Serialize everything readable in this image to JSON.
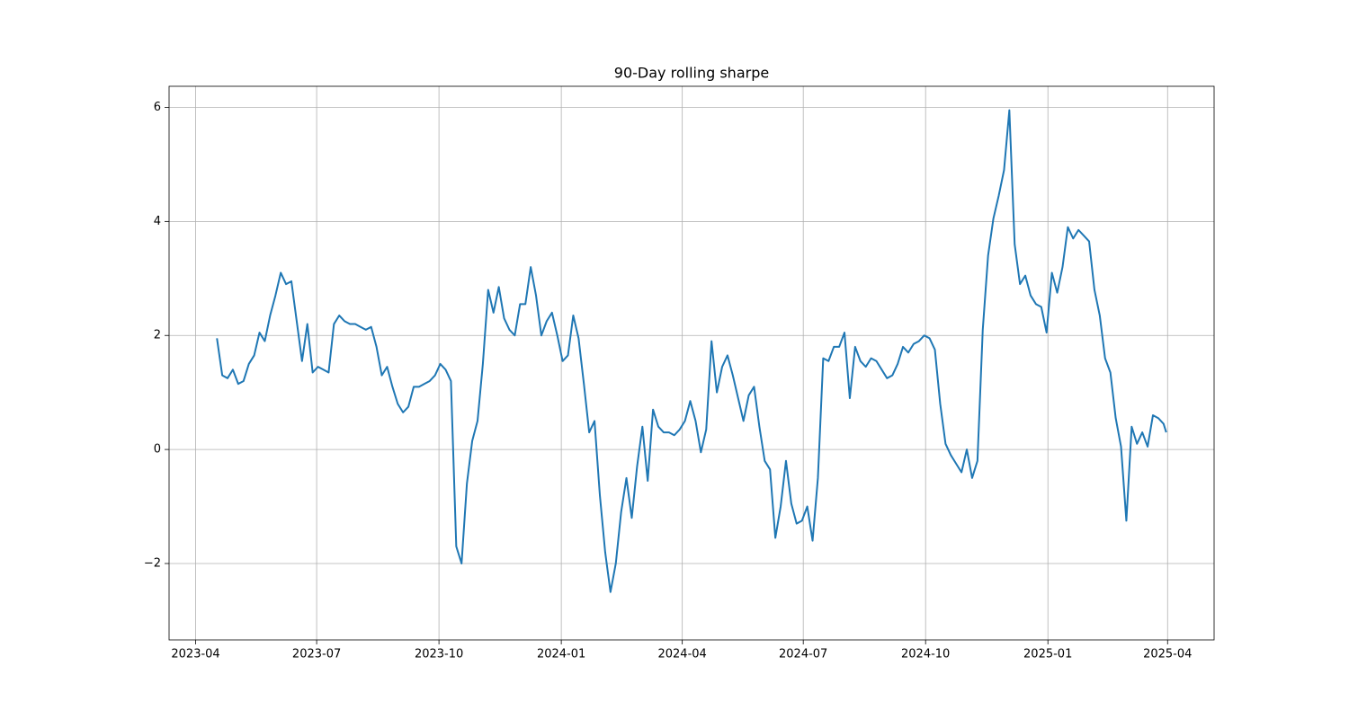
{
  "chart_data": {
    "type": "line",
    "title": "90-Day rolling sharpe",
    "color": "#1f77b4",
    "grid": true,
    "x": [
      "2023-04-17",
      "2023-04-21",
      "2023-04-25",
      "2023-04-29",
      "2023-05-03",
      "2023-05-07",
      "2023-05-11",
      "2023-05-15",
      "2023-05-19",
      "2023-05-23",
      "2023-05-27",
      "2023-05-31",
      "2023-06-04",
      "2023-06-08",
      "2023-06-12",
      "2023-06-16",
      "2023-06-20",
      "2023-06-24",
      "2023-06-28",
      "2023-07-02",
      "2023-07-06",
      "2023-07-10",
      "2023-07-14",
      "2023-07-18",
      "2023-07-22",
      "2023-07-26",
      "2023-07-30",
      "2023-08-03",
      "2023-08-07",
      "2023-08-11",
      "2023-08-15",
      "2023-08-19",
      "2023-08-23",
      "2023-08-27",
      "2023-08-31",
      "2023-09-04",
      "2023-09-08",
      "2023-09-12",
      "2023-09-16",
      "2023-09-20",
      "2023-09-24",
      "2023-09-28",
      "2023-10-02",
      "2023-10-06",
      "2023-10-10",
      "2023-10-14",
      "2023-10-18",
      "2023-10-22",
      "2023-10-26",
      "2023-10-30",
      "2023-11-03",
      "2023-11-07",
      "2023-11-11",
      "2023-11-15",
      "2023-11-19",
      "2023-11-23",
      "2023-11-27",
      "2023-12-01",
      "2023-12-05",
      "2023-12-09",
      "2023-12-13",
      "2023-12-17",
      "2023-12-21",
      "2023-12-25",
      "2023-12-29",
      "2024-01-02",
      "2024-01-06",
      "2024-01-10",
      "2024-01-14",
      "2024-01-18",
      "2024-01-22",
      "2024-01-26",
      "2024-01-30",
      "2024-02-03",
      "2024-02-07",
      "2024-02-11",
      "2024-02-15",
      "2024-02-19",
      "2024-02-23",
      "2024-02-27",
      "2024-03-02",
      "2024-03-06",
      "2024-03-10",
      "2024-03-14",
      "2024-03-18",
      "2024-03-22",
      "2024-03-26",
      "2024-03-30",
      "2024-04-03",
      "2024-04-07",
      "2024-04-11",
      "2024-04-15",
      "2024-04-19",
      "2024-04-23",
      "2024-04-27",
      "2024-05-01",
      "2024-05-05",
      "2024-05-09",
      "2024-05-13",
      "2024-05-17",
      "2024-05-21",
      "2024-05-25",
      "2024-05-29",
      "2024-06-02",
      "2024-06-06",
      "2024-06-10",
      "2024-06-14",
      "2024-06-18",
      "2024-06-22",
      "2024-06-26",
      "2024-06-30",
      "2024-07-04",
      "2024-07-08",
      "2024-07-12",
      "2024-07-16",
      "2024-07-20",
      "2024-07-24",
      "2024-07-28",
      "2024-08-01",
      "2024-08-05",
      "2024-08-09",
      "2024-08-13",
      "2024-08-17",
      "2024-08-21",
      "2024-08-25",
      "2024-08-29",
      "2024-09-02",
      "2024-09-06",
      "2024-09-10",
      "2024-09-14",
      "2024-09-18",
      "2024-09-22",
      "2024-09-26",
      "2024-09-30",
      "2024-10-04",
      "2024-10-08",
      "2024-10-12",
      "2024-10-16",
      "2024-10-20",
      "2024-10-24",
      "2024-10-28",
      "2024-11-01",
      "2024-11-05",
      "2024-11-09",
      "2024-11-13",
      "2024-11-17",
      "2024-11-21",
      "2024-11-25",
      "2024-11-29",
      "2024-12-03",
      "2024-12-07",
      "2024-12-11",
      "2024-12-15",
      "2024-12-19",
      "2024-12-23",
      "2024-12-27",
      "2024-12-31",
      "2025-01-04",
      "2025-01-08",
      "2025-01-12",
      "2025-01-16",
      "2025-01-20",
      "2025-01-24",
      "2025-01-28",
      "2025-02-01",
      "2025-02-05",
      "2025-02-09",
      "2025-02-13",
      "2025-02-17",
      "2025-02-21",
      "2025-02-25",
      "2025-03-01",
      "2025-03-05",
      "2025-03-09",
      "2025-03-13",
      "2025-03-17",
      "2025-03-21",
      "2025-03-25",
      "2025-03-29",
      "2025-03-31"
    ],
    "values": [
      1.95,
      1.3,
      1.25,
      1.4,
      1.15,
      1.2,
      1.5,
      1.65,
      2.05,
      1.9,
      2.35,
      2.7,
      3.1,
      2.9,
      2.95,
      2.25,
      1.55,
      2.2,
      1.35,
      1.45,
      1.4,
      1.35,
      2.2,
      2.35,
      2.25,
      2.2,
      2.2,
      2.15,
      2.1,
      2.15,
      1.8,
      1.3,
      1.45,
      1.1,
      0.8,
      0.65,
      0.75,
      1.1,
      1.1,
      1.15,
      1.2,
      1.3,
      1.5,
      1.4,
      1.2,
      -1.7,
      -2.0,
      -0.6,
      0.15,
      0.5,
      1.5,
      2.8,
      2.4,
      2.85,
      2.3,
      2.1,
      2.0,
      2.55,
      2.55,
      3.2,
      2.7,
      2.0,
      2.25,
      2.4,
      2.0,
      1.55,
      1.65,
      2.35,
      1.95,
      1.15,
      0.3,
      0.5,
      -0.8,
      -1.8,
      -2.5,
      -2.0,
      -1.1,
      -0.5,
      -1.2,
      -0.3,
      0.4,
      -0.55,
      0.7,
      0.4,
      0.3,
      0.3,
      0.25,
      0.35,
      0.5,
      0.85,
      0.5,
      -0.05,
      0.35,
      1.9,
      1.0,
      1.45,
      1.65,
      1.3,
      0.9,
      0.5,
      0.95,
      1.1,
      0.4,
      -0.2,
      -0.35,
      -1.55,
      -1.0,
      -0.2,
      -0.95,
      -1.3,
      -1.25,
      -1.0,
      -1.6,
      -0.5,
      1.6,
      1.55,
      1.8,
      1.8,
      2.05,
      0.9,
      1.8,
      1.55,
      1.45,
      1.6,
      1.55,
      1.4,
      1.25,
      1.3,
      1.5,
      1.8,
      1.7,
      1.85,
      1.9,
      2.0,
      1.95,
      1.75,
      0.8,
      0.1,
      -0.1,
      -0.25,
      -0.4,
      0.0,
      -0.5,
      -0.2,
      2.1,
      3.4,
      4.05,
      4.45,
      4.9,
      5.95,
      3.6,
      2.9,
      3.05,
      2.7,
      2.55,
      2.5,
      2.05,
      3.1,
      2.75,
      3.2,
      3.9,
      3.7,
      3.85,
      3.75,
      3.65,
      2.8,
      2.35,
      1.6,
      1.35,
      0.55,
      0.05,
      -1.25,
      0.4,
      0.1,
      0.3,
      0.05,
      0.6,
      0.55,
      0.45,
      0.3
    ],
    "xlim": [
      "2023-03-12",
      "2025-05-06"
    ],
    "xticks": [
      {
        "value": "2023-04-01",
        "label": "2023-04"
      },
      {
        "value": "2023-07-01",
        "label": "2023-07"
      },
      {
        "value": "2023-10-01",
        "label": "2023-10"
      },
      {
        "value": "2024-01-01",
        "label": "2024-01"
      },
      {
        "value": "2024-04-01",
        "label": "2024-04"
      },
      {
        "value": "2024-07-01",
        "label": "2024-07"
      },
      {
        "value": "2024-10-01",
        "label": "2024-10"
      },
      {
        "value": "2025-01-01",
        "label": "2025-01"
      },
      {
        "value": "2025-04-01",
        "label": "2025-04"
      }
    ],
    "ylim": [
      -3.34,
      6.37
    ],
    "yticks": [
      {
        "value": -2,
        "label": "−2"
      },
      0,
      2,
      4,
      6
    ]
  }
}
